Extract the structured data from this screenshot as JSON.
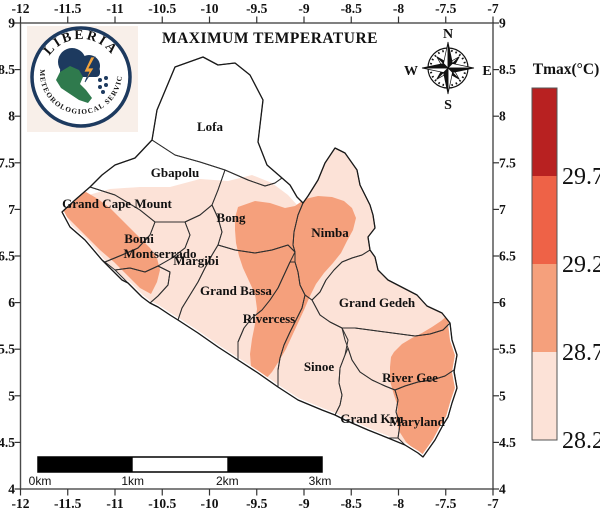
{
  "title": "MAXIMUM TEMPERATURE",
  "logo": {
    "top_text": "LIBERIA",
    "bottom_text": "METEOROLOGIOCAL SERVICE",
    "navy": "#1d3a5f",
    "green": "#2f7a4d",
    "orange": "#f2a33c",
    "cream_bg": "#f8efe9"
  },
  "compass": {
    "n": "N",
    "e": "E",
    "s": "S",
    "w": "W"
  },
  "axes": {
    "x_ticks": [
      "-12",
      "-11.5",
      "-11",
      "-10.5",
      "-10",
      "-9.5",
      "-9",
      "-8.5",
      "-8",
      "-7.5",
      "-7"
    ],
    "y_ticks": [
      "9",
      "8.5",
      "8",
      "7.5",
      "7",
      "6.5",
      "6",
      "5.5",
      "5",
      "4.5",
      "4"
    ]
  },
  "colorbar": {
    "title": "Tmax(°C)",
    "tick_labels": [
      "29.7",
      "29.2",
      "28.7",
      "28.2"
    ],
    "colors": [
      "#b82121",
      "#ee6247",
      "#f5a07c",
      "#fce2d7"
    ],
    "no_data_color": "#ffffff"
  },
  "scalebar": {
    "labels": [
      "0km",
      "1km",
      "2km",
      "3km"
    ]
  },
  "map": {
    "border_color": "#2f2f2f",
    "counties": [
      {
        "name": "Lofa",
        "temp_class": "no data (white)"
      },
      {
        "name": "Gbapolu",
        "temp_class": "no data / 28.2-28.7"
      },
      {
        "name": "Grand Cape Mount",
        "temp_class": "28.7-29.2 coast, 28.2-28.7 inland"
      },
      {
        "name": "Bong",
        "temp_class": "28.2-28.7 west, 28.7-29.2 east"
      },
      {
        "name": "Bomi",
        "temp_class": "28.7-29.2"
      },
      {
        "name": "Montserrado",
        "temp_class": "28.7-29.2 / 28.2-28.7"
      },
      {
        "name": "Margibi",
        "temp_class": "28.2-28.7"
      },
      {
        "name": "Grand Bassa",
        "temp_class": "28.2-28.7 west, 28.7-29.2 east"
      },
      {
        "name": "Nimba",
        "temp_class": "28.7-29.2 core, 28.2-28.7 rim"
      },
      {
        "name": "Grand Gedeh",
        "temp_class": "28.2-28.7"
      },
      {
        "name": "Rivercess",
        "temp_class": "28.7-29.2 band"
      },
      {
        "name": "Sinoe",
        "temp_class": "28.2-28.7"
      },
      {
        "name": "River Gee",
        "temp_class": "28.7-29.2 east, 28.2-28.7 west"
      },
      {
        "name": "Grand Kru",
        "temp_class": "28.2-28.7"
      },
      {
        "name": "Maryland",
        "temp_class": "28.7-29.2"
      }
    ]
  },
  "chart_data": {
    "type": "choropleth-map",
    "title": "MAXIMUM TEMPERATURE",
    "legend_title": "Tmax(°C)",
    "scale_breaks": [
      28.2,
      28.7,
      29.2,
      29.7
    ],
    "x_range": [
      -12,
      -7
    ],
    "y_range": [
      4,
      9
    ],
    "scalebar_km": [
      0,
      1,
      2,
      3
    ]
  }
}
